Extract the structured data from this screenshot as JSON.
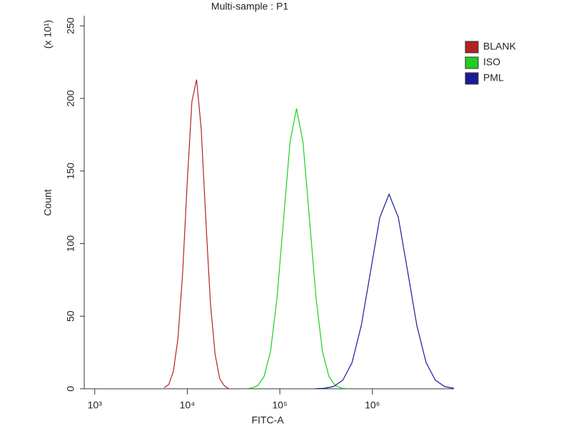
{
  "chart_data": {
    "type": "line",
    "title": "Multi-sample : P1",
    "x_label": "FITC-A",
    "y_label": "Count",
    "y_multiplier": "(x 10¹)",
    "xscale": "log",
    "xlim": [
      770,
      7600000
    ],
    "xticks": [
      {
        "value": 1000,
        "label": "10³"
      },
      {
        "value": 10000,
        "label": "10⁴"
      },
      {
        "value": 100000,
        "label": "10⁵"
      },
      {
        "value": 1000000,
        "label": "10⁶"
      }
    ],
    "ylim": [
      0,
      257
    ],
    "yticks": [
      0,
      50,
      100,
      150,
      200,
      250
    ],
    "legend": "right",
    "series": [
      {
        "name": "BLANK",
        "color": "#b22222",
        "x": [
          5623,
          6310,
          7079,
          7943,
          8913,
          10000,
          11220,
          12589,
          14125,
          15849,
          17783,
          19953,
          22387,
          25119,
          28184
        ],
        "values": [
          0.7,
          3,
          12,
          35,
          80,
          143,
          198,
          213,
          179,
          117,
          59,
          24,
          7,
          2,
          0
        ]
      },
      {
        "name": "ISO",
        "color": "#22cc22",
        "x": [
          41687,
          48978,
          57544,
          67608,
          79433,
          93325,
          109648,
          128825,
          151356,
          177828,
          208930,
          245471,
          288403,
          338844,
          398107,
          467735,
          549541
        ],
        "values": [
          0.1,
          0.4,
          2.1,
          8.5,
          26,
          63,
          117,
          170,
          193,
          170,
          117,
          63,
          26,
          8.5,
          2.1,
          0.4,
          0.1
        ]
      },
      {
        "name": "PML",
        "color": "#1a1a99",
        "x": [
          239883,
          301995,
          380189,
          478630,
          602560,
          758578,
          954993,
          1202264,
          1513561,
          1905461,
          2398833,
          3019952,
          3801894,
          4786301,
          6025596,
          7585776
        ],
        "values": [
          0.05,
          0.3,
          1.5,
          5.9,
          18,
          43.6,
          81,
          118,
          134,
          118,
          81,
          43.6,
          18,
          5.9,
          1.5,
          0.3
        ]
      }
    ]
  }
}
